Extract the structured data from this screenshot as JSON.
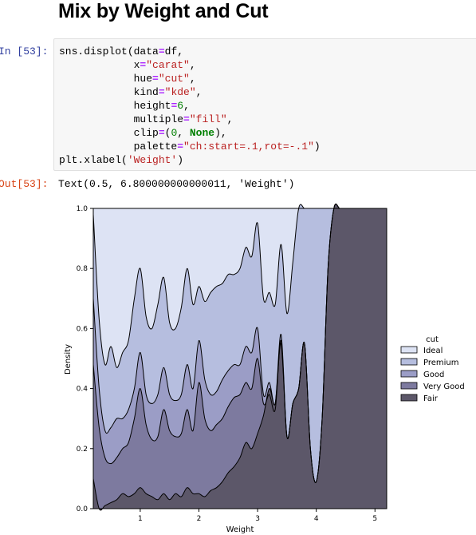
{
  "heading": "Mix by Weight and Cut",
  "cell": {
    "in_prompt": "In [53]:",
    "out_prompt": "Out[53]:",
    "output_text": "Text(0.5, 6.800000000000011, 'Weight')"
  },
  "chart_data": {
    "type": "area",
    "xlabel": "Weight",
    "ylabel": "Density",
    "xlim": [
      0.2,
      5.2
    ],
    "ylim": [
      0,
      1
    ],
    "x_ticks": [
      "1",
      "2",
      "3",
      "4",
      "5"
    ],
    "y_ticks": [
      "0.0",
      "0.2",
      "0.4",
      "0.6",
      "0.8",
      "1.0"
    ],
    "legend_title": "cut",
    "legend_position": "center-right",
    "grid": false,
    "x": [
      0.2,
      0.3,
      0.4,
      0.5,
      0.6,
      0.7,
      0.8,
      0.9,
      1.0,
      1.1,
      1.2,
      1.3,
      1.4,
      1.5,
      1.6,
      1.7,
      1.8,
      1.9,
      2.0,
      2.1,
      2.2,
      2.3,
      2.4,
      2.5,
      2.6,
      2.7,
      2.8,
      2.9,
      3.0,
      3.1,
      3.2,
      3.3,
      3.4,
      3.5,
      3.6,
      3.7,
      3.8,
      3.9,
      4.0,
      4.1,
      4.2,
      4.3,
      4.4,
      4.5,
      4.6,
      4.7,
      4.8,
      4.9,
      5.0,
      5.1,
      5.2
    ],
    "boundaries": [
      {
        "name": "Fair",
        "values": [
          0.1,
          0.0,
          0.01,
          0.02,
          0.03,
          0.05,
          0.04,
          0.05,
          0.07,
          0.05,
          0.04,
          0.03,
          0.05,
          0.03,
          0.05,
          0.04,
          0.07,
          0.05,
          0.05,
          0.04,
          0.06,
          0.07,
          0.09,
          0.12,
          0.14,
          0.17,
          0.22,
          0.2,
          0.25,
          0.31,
          0.4,
          0.35,
          0.55,
          0.24,
          0.35,
          0.4,
          0.55,
          0.2,
          0.09,
          0.3,
          0.8,
          1.0,
          1.0,
          1.0,
          1.0,
          1.0,
          1.0,
          1.0,
          1.0,
          1.0,
          1.0
        ]
      },
      {
        "name": "Very Good",
        "values": [
          0.48,
          0.27,
          0.17,
          0.15,
          0.17,
          0.2,
          0.22,
          0.3,
          0.4,
          0.28,
          0.23,
          0.24,
          0.33,
          0.26,
          0.24,
          0.25,
          0.33,
          0.26,
          0.42,
          0.3,
          0.26,
          0.28,
          0.3,
          0.34,
          0.37,
          0.38,
          0.42,
          0.4,
          0.5,
          0.35,
          0.38,
          0.33,
          0.56,
          0.24,
          0.35,
          0.4,
          0.55,
          0.2,
          0.09,
          0.3,
          0.8,
          1.0,
          1.0,
          1.0,
          1.0,
          1.0,
          1.0,
          1.0,
          1.0,
          1.0,
          1.0
        ]
      },
      {
        "name": "Good",
        "values": [
          0.7,
          0.4,
          0.26,
          0.27,
          0.3,
          0.3,
          0.33,
          0.4,
          0.52,
          0.38,
          0.35,
          0.38,
          0.47,
          0.38,
          0.36,
          0.38,
          0.48,
          0.4,
          0.56,
          0.43,
          0.38,
          0.39,
          0.43,
          0.46,
          0.48,
          0.48,
          0.54,
          0.52,
          0.6,
          0.38,
          0.42,
          0.35,
          0.58,
          0.24,
          0.35,
          0.4,
          0.55,
          0.2,
          0.09,
          0.3,
          0.8,
          1.0,
          1.0,
          1.0,
          1.0,
          1.0,
          1.0,
          1.0,
          1.0,
          1.0,
          1.0
        ]
      },
      {
        "name": "Premium",
        "values": [
          0.98,
          0.63,
          0.48,
          0.54,
          0.47,
          0.52,
          0.56,
          0.7,
          0.8,
          0.64,
          0.6,
          0.68,
          0.77,
          0.62,
          0.6,
          0.67,
          0.8,
          0.68,
          0.74,
          0.69,
          0.72,
          0.74,
          0.75,
          0.78,
          0.78,
          0.8,
          0.87,
          0.84,
          0.95,
          0.7,
          0.72,
          0.68,
          0.88,
          0.65,
          0.82,
          1.0,
          1.0,
          1.0,
          1.0,
          1.0,
          1.0,
          1.0,
          1.0,
          1.0,
          1.0,
          1.0,
          1.0,
          1.0,
          1.0,
          1.0,
          1.0
        ]
      },
      {
        "name": "Ideal",
        "values": [
          1.0,
          1.0,
          1.0,
          1.0,
          1.0,
          1.0,
          1.0,
          1.0,
          1.0,
          1.0,
          1.0,
          1.0,
          1.0,
          1.0,
          1.0,
          1.0,
          1.0,
          1.0,
          1.0,
          1.0,
          1.0,
          1.0,
          1.0,
          1.0,
          1.0,
          1.0,
          1.0,
          1.0,
          1.0,
          1.0,
          1.0,
          1.0,
          1.0,
          1.0,
          1.0,
          1.0,
          1.0,
          1.0,
          1.0,
          1.0,
          1.0,
          1.0,
          1.0,
          1.0,
          1.0,
          1.0,
          1.0,
          1.0,
          1.0,
          1.0,
          1.0
        ]
      }
    ],
    "legend": [
      {
        "name": "Ideal",
        "color": "#dde3f4"
      },
      {
        "name": "Premium",
        "color": "#b6bedf"
      },
      {
        "name": "Good",
        "color": "#9b9dc6"
      },
      {
        "name": "Very Good",
        "color": "#7d7a9f"
      },
      {
        "name": "Fair",
        "color": "#5c5769"
      }
    ]
  }
}
